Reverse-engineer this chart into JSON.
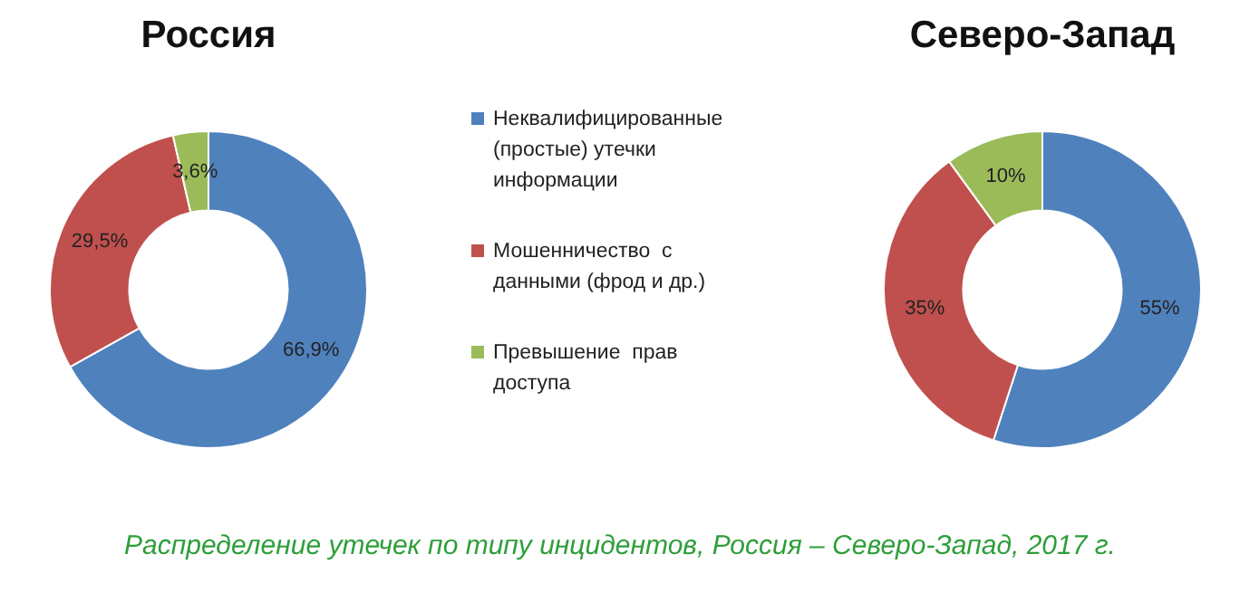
{
  "chart_data": [
    {
      "type": "donut",
      "title": "Россия",
      "categories": [
        "Неквалифицированные (простые) утечки информации",
        "Мошенничество  с данными (фрод и др.)",
        "Превышение  прав доступа"
      ],
      "values": [
        66.9,
        29.5,
        3.6
      ],
      "value_labels": [
        "66,9%",
        "29,5%",
        "3,6%"
      ],
      "colors": [
        "#4f81bd",
        "#c0504d",
        "#9bbb59"
      ],
      "legend": "right",
      "annotations": [
        "Распределение утечек по типу инцидентов, Россия – Северо-Запад, 2017 г."
      ]
    },
    {
      "type": "donut",
      "title": "Северо-Запад",
      "categories": [
        null,
        null,
        null
      ],
      "values": [
        55,
        35,
        10
      ],
      "value_labels": [
        "55%",
        "35%",
        "10%"
      ],
      "colors": [
        "#4f81bd",
        "#c0504d",
        "#9bbb59"
      ],
      "legend": false
    }
  ]
}
